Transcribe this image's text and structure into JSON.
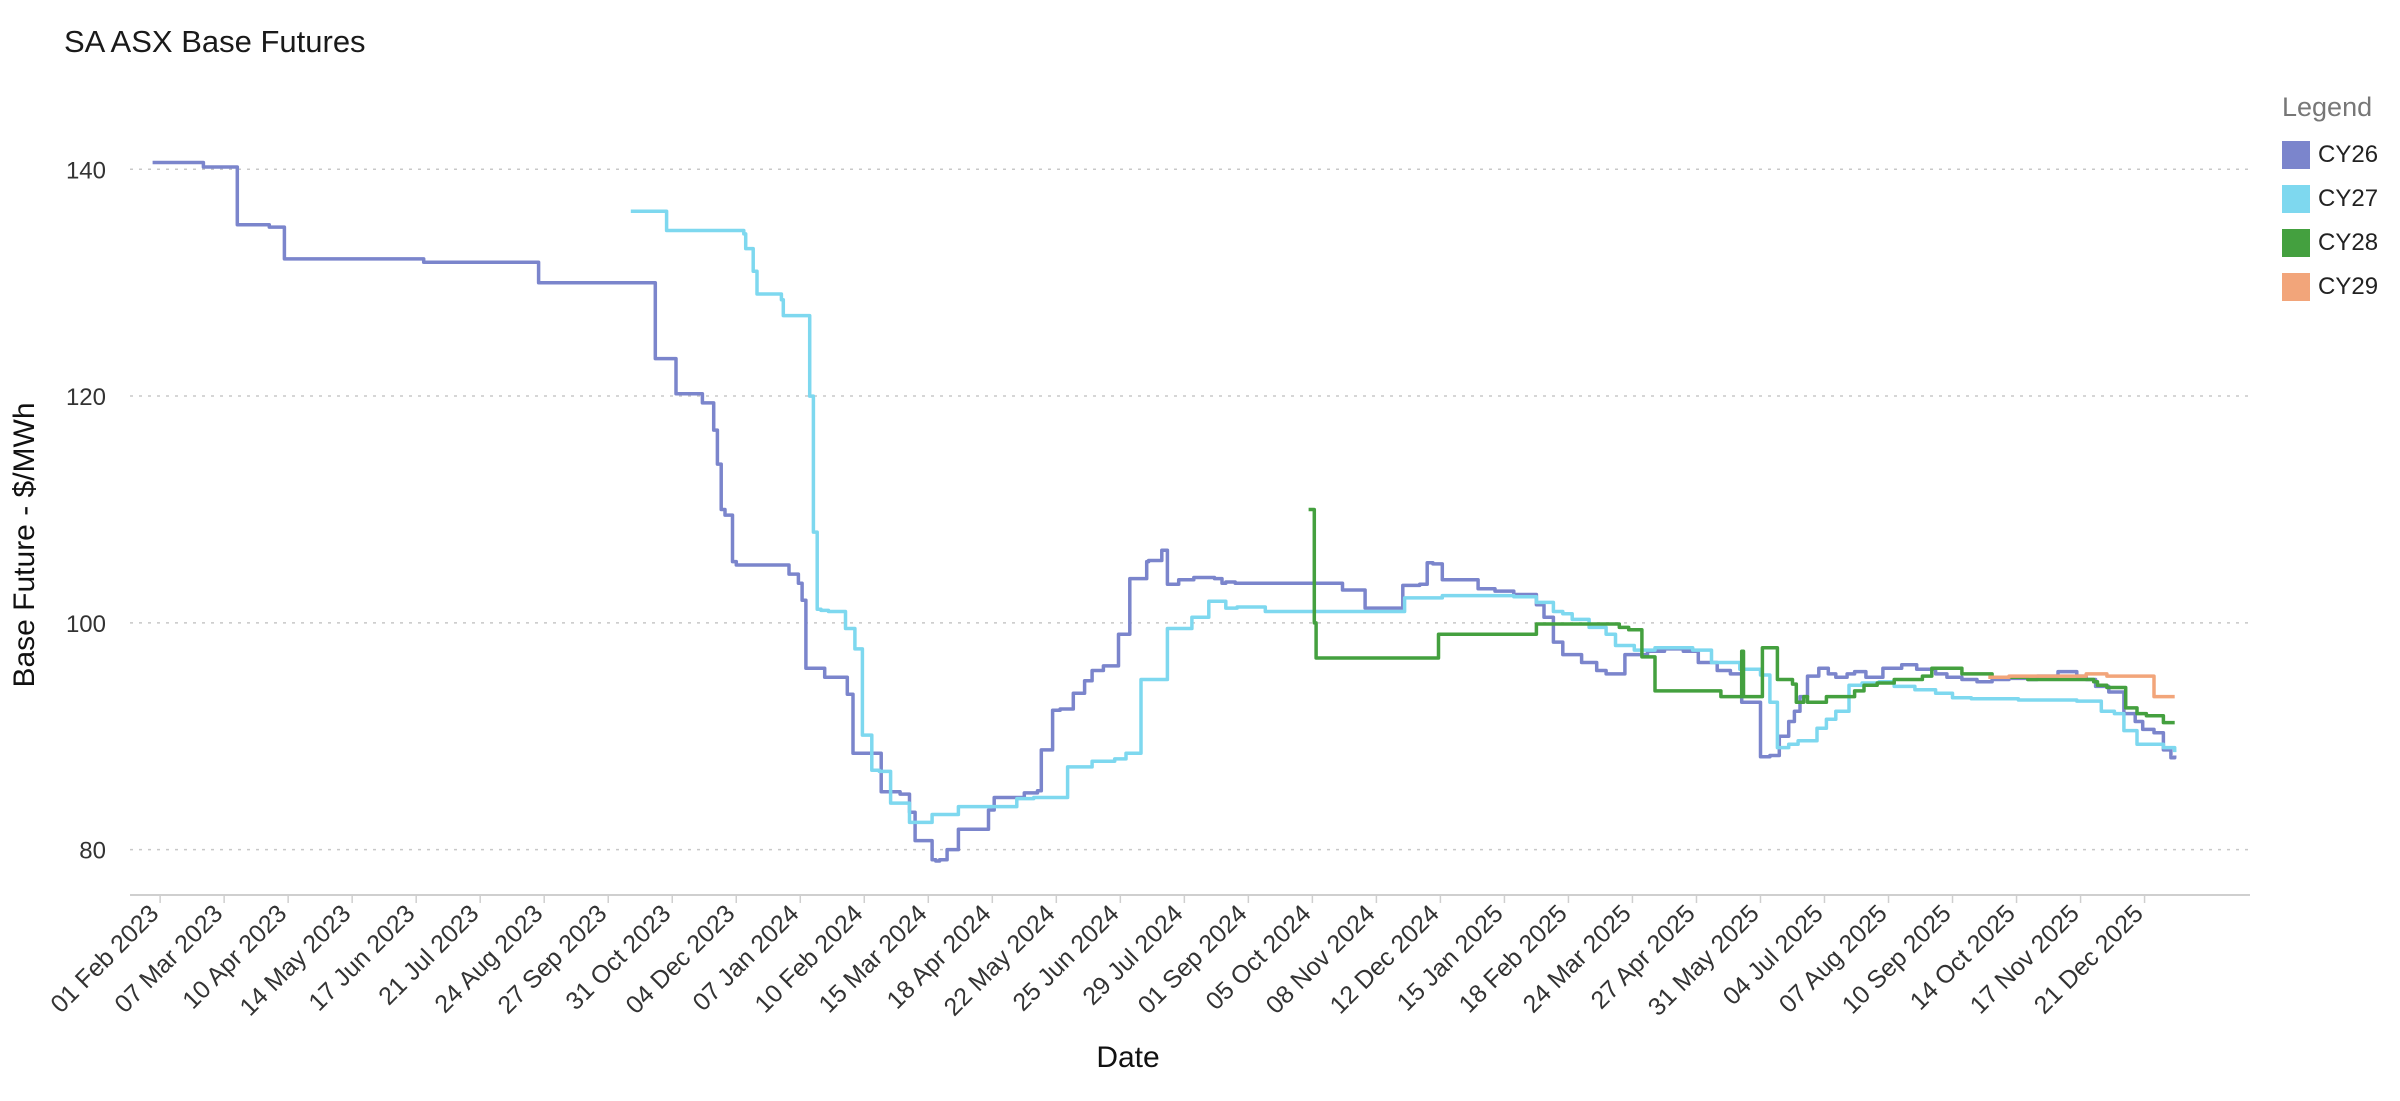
{
  "chart_data": {
    "type": "line",
    "title": "SA ASX Base Futures",
    "xlabel": "Date",
    "ylabel": "Base Future - $/MWh",
    "ylim": [
      76,
      151.4
    ],
    "y_ticks": [
      80,
      100,
      120,
      140
    ],
    "xlim": [
      "2023-01-16",
      "2026-02-15"
    ],
    "x_tick_labels": [
      "01 Feb 2023",
      "07 Mar 2023",
      "10 Apr 2023",
      "14 May 2023",
      "17 Jun 2023",
      "21 Jul 2023",
      "24 Aug 2023",
      "27 Sep 2023",
      "31 Oct 2023",
      "04 Dec 2023",
      "07 Jan 2024",
      "10 Feb 2024",
      "15 Mar 2024",
      "18 Apr 2024",
      "22 May 2024",
      "25 Jun 2024",
      "29 Jul 2024",
      "01 Sep 2024",
      "05 Oct 2024",
      "08 Nov 2024",
      "12 Dec 2024",
      "15 Jan 2025",
      "18 Feb 2025",
      "24 Mar 2025",
      "27 Apr 2025",
      "31 May 2025",
      "04 Jul 2025",
      "07 Aug 2025",
      "10 Sep 2025",
      "14 Oct 2025",
      "17 Nov 2025",
      "21 Dec 2025"
    ],
    "x_tick_dates": [
      "2023-02-01",
      "2023-03-07",
      "2023-04-10",
      "2023-05-14",
      "2023-06-17",
      "2023-07-21",
      "2023-08-24",
      "2023-09-27",
      "2023-10-31",
      "2023-12-04",
      "2024-01-07",
      "2024-02-10",
      "2024-03-15",
      "2024-04-18",
      "2024-05-22",
      "2024-06-25",
      "2024-07-29",
      "2024-09-01",
      "2024-10-05",
      "2024-11-08",
      "2024-12-12",
      "2025-01-15",
      "2025-02-18",
      "2025-03-24",
      "2025-04-27",
      "2025-05-31",
      "2025-07-04",
      "2025-08-07",
      "2025-09-10",
      "2025-10-14",
      "2025-11-17",
      "2025-12-21"
    ],
    "grid": true,
    "legend_title": "Legend",
    "legend_position": "right",
    "series": [
      {
        "name": "CY26",
        "color": "#7b85cc",
        "x": [
          "2023-01-28",
          "2023-02-23",
          "2023-02-24",
          "2023-03-13",
          "2023-03-14",
          "2023-03-31",
          "2023-04-07",
          "2023-04-08",
          "2023-04-15",
          "2023-04-16",
          "2023-06-20",
          "2023-06-21",
          "2023-08-20",
          "2023-08-21",
          "2023-10-21",
          "2023-10-22",
          "2023-11-01",
          "2023-11-02",
          "2023-11-15",
          "2023-11-16",
          "2023-11-22",
          "2023-11-24",
          "2023-11-26",
          "2023-11-28",
          "2023-12-02",
          "2023-12-04",
          "2023-12-28",
          "2024-01-01",
          "2024-01-06",
          "2024-01-08",
          "2024-01-10",
          "2024-01-20",
          "2024-01-25",
          "2024-02-01",
          "2024-02-04",
          "2024-02-19",
          "2024-02-24",
          "2024-02-29",
          "2024-03-05",
          "2024-03-08",
          "2024-03-17",
          "2024-03-19",
          "2024-03-21",
          "2024-03-25",
          "2024-03-31",
          "2024-04-14",
          "2024-04-16",
          "2024-04-19",
          "2024-05-05",
          "2024-05-12",
          "2024-05-14",
          "2024-05-20",
          "2024-05-24",
          "2024-05-31",
          "2024-06-06",
          "2024-06-10",
          "2024-06-16",
          "2024-06-24",
          "2024-06-30",
          "2024-07-09",
          "2024-07-10",
          "2024-07-17",
          "2024-07-20",
          "2024-07-26",
          "2024-08-03",
          "2024-08-14",
          "2024-08-18",
          "2024-08-20",
          "2024-08-25",
          "2024-09-14",
          "2024-10-10",
          "2024-10-21",
          "2024-11-02",
          "2024-11-15",
          "2024-11-22",
          "2024-12-01",
          "2024-12-05",
          "2024-12-08",
          "2024-12-13",
          "2025-01-01",
          "2025-01-10",
          "2025-01-20",
          "2025-02-01",
          "2025-02-05",
          "2025-02-10",
          "2025-02-15",
          "2025-02-25",
          "2025-03-05",
          "2025-03-10",
          "2025-03-20",
          "2025-04-01",
          "2025-04-10",
          "2025-04-20",
          "2025-04-28",
          "2025-05-08",
          "2025-05-15",
          "2025-05-21",
          "2025-05-31",
          "2025-06-05",
          "2025-06-10",
          "2025-06-15",
          "2025-06-18",
          "2025-06-21",
          "2025-06-25",
          "2025-07-01",
          "2025-07-06",
          "2025-07-10",
          "2025-07-16",
          "2025-07-20",
          "2025-07-26",
          "2025-08-04",
          "2025-08-14",
          "2025-08-22",
          "2025-09-01",
          "2025-09-07",
          "2025-09-15",
          "2025-09-23",
          "2025-10-01",
          "2025-10-10",
          "2025-10-20",
          "2025-10-25",
          "2025-11-05",
          "2025-11-15",
          "2025-11-20",
          "2025-11-25",
          "2025-12-02",
          "2025-12-10",
          "2025-12-16",
          "2025-12-20",
          "2025-12-26",
          "2025-12-31",
          "2026-01-04",
          "2026-01-06"
        ],
        "y": [
          140.6,
          140.6,
          140.2,
          140.2,
          135.1,
          134.9,
          134.9,
          132.1,
          132.1,
          132.1,
          132.1,
          131.8,
          131.8,
          130.0,
          130.0,
          123.3,
          123.3,
          120.2,
          120.2,
          119.4,
          117.0,
          114.0,
          110.0,
          109.5,
          105.4,
          105.1,
          105.1,
          104.3,
          103.5,
          102.0,
          96.0,
          95.2,
          95.2,
          93.7,
          88.5,
          85.1,
          85.1,
          84.9,
          83.3,
          80.8,
          79.1,
          79.0,
          79.1,
          80.0,
          81.8,
          81.8,
          83.5,
          84.6,
          85.0,
          85.2,
          88.8,
          92.3,
          92.4,
          93.8,
          94.9,
          95.8,
          96.2,
          99.0,
          103.9,
          105.4,
          105.5,
          106.4,
          103.4,
          103.8,
          104.0,
          103.9,
          103.5,
          103.6,
          103.5,
          103.5,
          103.5,
          102.9,
          101.3,
          101.3,
          103.3,
          103.4,
          105.3,
          105.2,
          103.8,
          103.0,
          102.8,
          102.5,
          101.6,
          100.5,
          98.3,
          97.2,
          96.5,
          95.8,
          95.5,
          97.2,
          97.5,
          97.7,
          97.5,
          96.5,
          95.8,
          95.5,
          93.0,
          88.2,
          88.3,
          90.0,
          91.3,
          92.2,
          93.5,
          95.3,
          96.0,
          95.5,
          95.2,
          95.5,
          95.7,
          95.2,
          96.0,
          96.3,
          95.9,
          95.5,
          95.2,
          95.0,
          94.8,
          95.0,
          95.1,
          95.0,
          95.3,
          95.7,
          95.3,
          95.0,
          94.4,
          93.9,
          92.0,
          91.3,
          90.6,
          90.3,
          88.8,
          88.1,
          88.3
        ]
      },
      {
        "name": "CY27",
        "color": "#7ed8ef",
        "x": [
          "2023-10-09",
          "2023-10-27",
          "2023-10-28",
          "2023-12-06",
          "2023-12-08",
          "2023-12-09",
          "2023-12-13",
          "2023-12-15",
          "2023-12-28",
          "2023-12-29",
          "2024-01-11",
          "2024-01-12",
          "2024-01-14",
          "2024-01-16",
          "2024-01-18",
          "2024-01-20",
          "2024-01-22",
          "2024-01-31",
          "2024-02-05",
          "2024-02-09",
          "2024-02-14",
          "2024-02-18",
          "2024-02-24",
          "2024-03-05",
          "2024-03-10",
          "2024-03-17",
          "2024-03-31",
          "2024-04-05",
          "2024-04-16",
          "2024-05-01",
          "2024-05-10",
          "2024-05-14",
          "2024-05-28",
          "2024-06-10",
          "2024-06-22",
          "2024-06-28",
          "2024-07-06",
          "2024-07-20",
          "2024-08-02",
          "2024-08-04",
          "2024-08-11",
          "2024-08-20",
          "2024-08-26",
          "2024-09-10",
          "2024-10-01",
          "2024-11-04",
          "2024-11-23",
          "2024-12-13",
          "2025-01-15",
          "2025-01-20",
          "2025-02-01",
          "2025-02-10",
          "2025-02-15",
          "2025-02-20",
          "2025-03-01",
          "2025-03-10",
          "2025-03-15",
          "2025-03-25",
          "2025-04-05",
          "2025-04-15",
          "2025-04-25",
          "2025-05-05",
          "2025-05-20",
          "2025-05-31",
          "2025-06-05",
          "2025-06-09",
          "2025-06-15",
          "2025-06-20",
          "2025-06-30",
          "2025-07-05",
          "2025-07-10",
          "2025-07-17",
          "2025-07-24",
          "2025-08-02",
          "2025-08-10",
          "2025-08-21",
          "2025-09-01",
          "2025-09-10",
          "2025-09-20",
          "2025-10-01",
          "2025-10-15",
          "2025-11-01",
          "2025-11-15",
          "2025-11-28",
          "2025-12-05",
          "2025-12-10",
          "2025-12-17",
          "2025-12-31",
          "2026-01-06"
        ],
        "y": [
          136.3,
          136.3,
          134.6,
          134.6,
          134.3,
          133.0,
          131.0,
          129.0,
          128.5,
          127.1,
          127.1,
          120.0,
          108.0,
          101.2,
          101.1,
          101.1,
          101.0,
          99.5,
          97.7,
          90.1,
          87.0,
          86.9,
          84.1,
          82.4,
          82.4,
          83.1,
          83.8,
          83.8,
          83.8,
          84.5,
          84.6,
          84.6,
          87.3,
          87.8,
          88.0,
          88.5,
          95.0,
          99.5,
          100.5,
          100.5,
          101.9,
          101.3,
          101.4,
          101.0,
          101.0,
          101.0,
          102.2,
          102.4,
          102.4,
          102.3,
          101.8,
          101.0,
          100.8,
          100.3,
          99.6,
          99.0,
          98.0,
          97.6,
          97.8,
          97.8,
          97.6,
          96.5,
          95.9,
          95.4,
          93.0,
          89.0,
          89.3,
          89.6,
          90.7,
          91.5,
          92.2,
          94.5,
          94.7,
          94.8,
          94.4,
          94.1,
          93.8,
          93.4,
          93.3,
          93.3,
          93.2,
          93.2,
          93.1,
          92.2,
          92.0,
          90.5,
          89.3,
          89.0,
          88.6
        ]
      },
      {
        "name": "CY28",
        "color": "#44a03f",
        "x": [
          "2024-10-03",
          "2024-10-06",
          "2024-10-07",
          "2024-12-10",
          "2024-12-11",
          "2025-01-31",
          "2025-02-01",
          "2025-03-16",
          "2025-03-17",
          "2025-03-22",
          "2025-03-25",
          "2025-03-29",
          "2025-04-05",
          "2025-05-10",
          "2025-05-20",
          "2025-05-21",
          "2025-05-22",
          "2025-05-31",
          "2025-06-01",
          "2025-06-08",
          "2025-06-09",
          "2025-06-17",
          "2025-06-19",
          "2025-06-23",
          "2025-06-25",
          "2025-07-05",
          "2025-07-06",
          "2025-07-20",
          "2025-07-25",
          "2025-08-01",
          "2025-08-10",
          "2025-08-25",
          "2025-08-30",
          "2025-09-15",
          "2025-10-01",
          "2025-10-20",
          "2025-11-01",
          "2025-11-24",
          "2025-11-26",
          "2025-12-01",
          "2025-12-11",
          "2025-12-17",
          "2025-12-22",
          "2025-12-31",
          "2026-01-06"
        ],
        "y": [
          110.0,
          100.0,
          96.9,
          96.9,
          99.0,
          99.0,
          99.9,
          99.9,
          99.6,
          99.4,
          99.4,
          97.0,
          94.0,
          93.5,
          93.5,
          97.5,
          93.5,
          93.5,
          97.8,
          97.8,
          95.0,
          94.6,
          93.0,
          93.5,
          93.0,
          93.5,
          93.5,
          94.0,
          94.5,
          94.7,
          95.0,
          95.3,
          96.0,
          95.5,
          95.2,
          95.0,
          95.0,
          94.8,
          94.5,
          94.3,
          92.5,
          92.0,
          91.8,
          91.2,
          91.2
        ]
      },
      {
        "name": "CY29",
        "color": "#f2a57a",
        "x": [
          "2025-09-29",
          "2025-10-10",
          "2025-11-20",
          "2025-12-01",
          "2025-12-24",
          "2025-12-26",
          "2026-01-06"
        ],
        "y": [
          95.2,
          95.3,
          95.5,
          95.3,
          95.3,
          93.5,
          93.5
        ]
      }
    ]
  }
}
